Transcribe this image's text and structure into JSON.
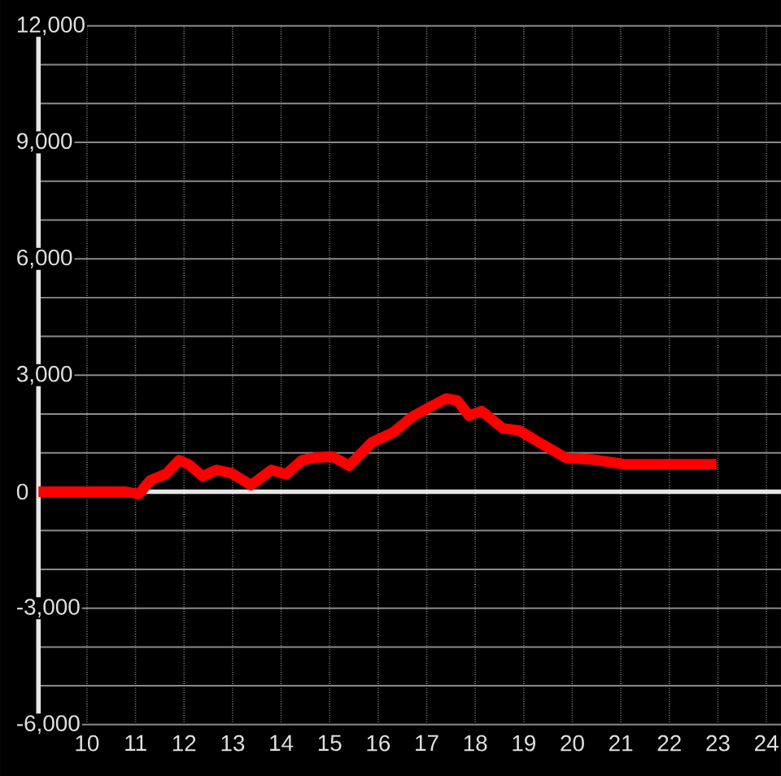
{
  "chart_data": {
    "type": "line",
    "x": [
      9,
      10.8,
      11.07,
      11.3,
      11.63,
      11.9,
      12.1,
      12.38,
      12.67,
      12.97,
      13.38,
      13.8,
      14.1,
      14.43,
      14.7,
      15.07,
      15.4,
      15.87,
      16.3,
      16.7,
      17.05,
      17.4,
      17.63,
      17.87,
      18.13,
      18.57,
      18.9,
      19.4,
      19.87,
      20.4,
      21.07,
      22.97
    ],
    "values": [
      0,
      0,
      -60,
      290,
      460,
      810,
      700,
      400,
      560,
      480,
      170,
      560,
      450,
      810,
      880,
      900,
      670,
      1270,
      1520,
      1930,
      2170,
      2400,
      2350,
      1960,
      2080,
      1630,
      1580,
      1210,
      870,
      830,
      710,
      710
    ],
    "color": "#ff0000",
    "xlim": [
      9,
      24.3
    ],
    "xticks": [
      10,
      11,
      12,
      13,
      14,
      15,
      16,
      17,
      18,
      19,
      20,
      21,
      22,
      23,
      24
    ],
    "ylim": [
      -6000,
      12000
    ],
    "yticks": [
      {
        "value": -6000,
        "label": "-6,000"
      },
      {
        "value": -5000,
        "label": null
      },
      {
        "value": -4000,
        "label": null
      },
      {
        "value": -3000,
        "label": "-3,000"
      },
      {
        "value": -2000,
        "label": null
      },
      {
        "value": -1000,
        "label": null
      },
      0,
      {
        "value": 1000,
        "label": null
      },
      {
        "value": 2000,
        "label": null
      },
      {
        "value": 3000,
        "label": "3,000"
      },
      {
        "value": 4000,
        "label": null
      },
      {
        "value": 5000,
        "label": null
      },
      {
        "value": 6000,
        "label": "6,000"
      },
      {
        "value": 7000,
        "label": null
      },
      {
        "value": 8000,
        "label": null
      },
      {
        "value": 9000,
        "label": "9,000"
      },
      {
        "value": 10000,
        "label": null
      },
      {
        "value": 11000,
        "label": null
      },
      {
        "value": 12000,
        "label": "12,000"
      }
    ],
    "grid": true,
    "ref_lines": [
      {
        "axis": "y",
        "value": 0,
        "color": "#e6e6e6"
      }
    ]
  }
}
